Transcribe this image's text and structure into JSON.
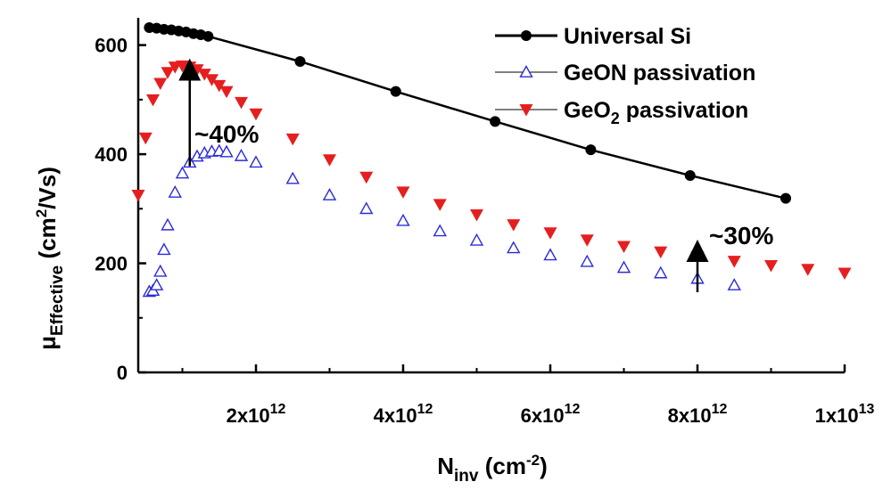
{
  "chart_data": {
    "type": "line",
    "xlabel_main": "N",
    "xlabel_sub": "inv",
    "xlabel_rest": " (cm",
    "xlabel_sup": "-2",
    "xlabel_end": ")",
    "ylabel_main": "μ",
    "ylabel_sub": "Effective",
    "ylabel_rest": " (cm",
    "ylabel_sup": "2",
    "ylabel_end": "/Vs)",
    "xlim": [
      400000000000.0,
      10000000000000.0
    ],
    "ylim": [
      0,
      650
    ],
    "x_ticks": [
      {
        "value": 2000000000000.0,
        "mant": "2x10",
        "exp": "12"
      },
      {
        "value": 4000000000000.0,
        "mant": "4x10",
        "exp": "12"
      },
      {
        "value": 6000000000000.0,
        "mant": "6x10",
        "exp": "12"
      },
      {
        "value": 8000000000000.0,
        "mant": "8x10",
        "exp": "12"
      },
      {
        "value": 10000000000000.0,
        "mant": "1x10",
        "exp": "13"
      }
    ],
    "y_ticks": [
      {
        "value": 0,
        "label": "0"
      },
      {
        "value": 200,
        "label": "200"
      },
      {
        "value": 400,
        "label": "400"
      },
      {
        "value": 600,
        "label": "600"
      }
    ],
    "legend_position": "top-right",
    "series": [
      {
        "name": "Universal Si",
        "marker": "circle",
        "color": "#000000",
        "x": [
          550000000000.0,
          650000000000.0,
          750000000000.0,
          850000000000.0,
          950000000000.0,
          1050000000000.0,
          1150000000000.0,
          1250000000000.0,
          1350000000000.0,
          2600000000000.0,
          3900000000000.0,
          5250000000000.0,
          6550000000000.0,
          7900000000000.0,
          9200000000000.0
        ],
        "y": [
          632,
          631,
          629,
          628,
          626,
          624,
          621,
          619,
          616,
          570,
          515,
          460,
          408,
          361,
          319
        ]
      },
      {
        "name": "GeON passivation",
        "marker": "triangle-up-open",
        "color": "#2b2bd9",
        "x": [
          550000000000.0,
          600000000000.0,
          650000000000.0,
          700000000000.0,
          750000000000.0,
          800000000000.0,
          900000000000.0,
          1000000000000.0,
          1100000000000.0,
          1200000000000.0,
          1300000000000.0,
          1400000000000.0,
          1500000000000.0,
          1600000000000.0,
          1800000000000.0,
          2000000000000.0,
          2500000000000.0,
          3000000000000.0,
          3500000000000.0,
          4000000000000.0,
          4500000000000.0,
          5000000000000.0,
          5500000000000.0,
          6000000000000.0,
          6500000000000.0,
          7000000000000.0,
          7500000000000.0,
          8000000000000.0,
          8500000000000.0
        ],
        "y": [
          148,
          150,
          160,
          185,
          225,
          270,
          330,
          365,
          385,
          396,
          402,
          405,
          406,
          404,
          397,
          385,
          355,
          325,
          300,
          278,
          259,
          242,
          228,
          215,
          203,
          192,
          182,
          172,
          160
        ]
      },
      {
        "name_main": "GeO",
        "name_sub": "2",
        "name_rest": " passivation",
        "marker": "triangle-down-filled",
        "color": "#e51f1f",
        "x": [
          400000000000.0,
          500000000000.0,
          600000000000.0,
          700000000000.0,
          800000000000.0,
          900000000000.0,
          1000000000000.0,
          1100000000000.0,
          1200000000000.0,
          1300000000000.0,
          1400000000000.0,
          1500000000000.0,
          1600000000000.0,
          1800000000000.0,
          2000000000000.0,
          2500000000000.0,
          3000000000000.0,
          3500000000000.0,
          4000000000000.0,
          4500000000000.0,
          5000000000000.0,
          5500000000000.0,
          6000000000000.0,
          6500000000000.0,
          7000000000000.0,
          7500000000000.0,
          8000000000000.0,
          8500000000000.0,
          9000000000000.0,
          9500000000000.0,
          10000000000000.0
        ],
        "y": [
          325,
          430,
          500,
          530,
          550,
          560,
          562,
          560,
          555,
          547,
          537,
          526,
          515,
          495,
          474,
          428,
          390,
          358,
          331,
          308,
          289,
          271,
          256,
          243,
          231,
          221,
          212,
          204,
          196,
          189,
          182
        ]
      }
    ],
    "annotations": [
      {
        "text": "~40%",
        "arrow_x": 1100000000000.0,
        "arrow_from": 378,
        "arrow_to": 555
      },
      {
        "text": "~30%",
        "arrow_x": 8000000000000.0,
        "arrow_from": 147,
        "arrow_to": 223
      }
    ]
  }
}
